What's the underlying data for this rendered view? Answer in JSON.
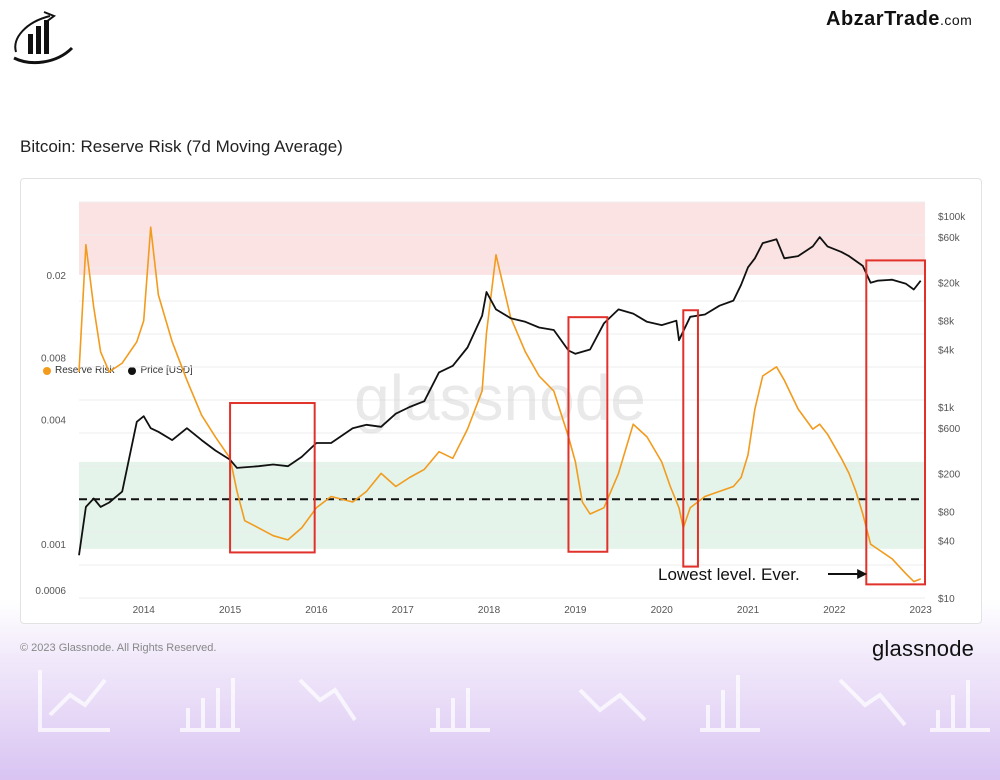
{
  "brand": {
    "name": "AbzarTrade",
    "tld": ".com"
  },
  "chart_title": "Bitcoin: Reserve Risk (7d Moving Average)",
  "copyright": "© 2023 Glassnode. All Rights Reserved.",
  "glassnode_logo": "glassnode",
  "watermark": "glassnode",
  "colors": {
    "reserve_risk": "#f29b1d",
    "price": "#111111",
    "red_zone": "#fbe3e3",
    "green_zone": "#e4f4ea",
    "box": "#e0322a"
  },
  "chart_data": {
    "type": "line",
    "title": "Bitcoin: Reserve Risk (7d Moving Average)",
    "legend": {
      "position": "top-left",
      "entries": [
        "Reserve Risk",
        "Price [USD]"
      ]
    },
    "x_range": [
      2013.25,
      2023.05
    ],
    "x_ticks": [
      "2014",
      "2015",
      "2016",
      "2017",
      "2018",
      "2019",
      "2020",
      "2021",
      "2022",
      "2023"
    ],
    "y_left": {
      "scale": "log",
      "range": [
        0.00055,
        0.045
      ],
      "ticks": [
        {
          "label": "0.02",
          "value": 0.02
        },
        {
          "label": "0.008",
          "value": 0.008
        },
        {
          "label": "0.004",
          "value": 0.004
        },
        {
          "label": "0.001",
          "value": 0.001
        },
        {
          "label": "0.0006",
          "value": 0.0006
        }
      ]
    },
    "y_right": {
      "scale": "log",
      "range": [
        10,
        140000
      ],
      "ticks": [
        {
          "label": "$100k",
          "value": 100000
        },
        {
          "label": "$60k",
          "value": 60000
        },
        {
          "label": "$20k",
          "value": 20000
        },
        {
          "label": "$8k",
          "value": 8000
        },
        {
          "label": "$4k",
          "value": 4000
        },
        {
          "label": "$1k",
          "value": 1000
        },
        {
          "label": "$600",
          "value": 600
        },
        {
          "label": "$200",
          "value": 200
        },
        {
          "label": "$80",
          "value": 80
        },
        {
          "label": "$40",
          "value": 40
        },
        {
          "label": "$10",
          "value": 10
        }
      ]
    },
    "zones": [
      {
        "name": "high-risk",
        "from": 0.02,
        "to": 0.045,
        "color": "#fbe3e3"
      },
      {
        "name": "low-risk",
        "from": 0.00095,
        "to": 0.0025,
        "color": "#e4f4ea"
      }
    ],
    "reference_line": {
      "style": "dashed",
      "value": 0.00165
    },
    "series": [
      {
        "name": "Reserve Risk",
        "axis": "left",
        "color": "#f29b1d",
        "x": [
          2013.25,
          2013.33,
          2013.42,
          2013.5,
          2013.6,
          2013.75,
          2013.92,
          2014.0,
          2014.08,
          2014.17,
          2014.33,
          2014.5,
          2014.67,
          2014.83,
          2015.0,
          2015.08,
          2015.17,
          2015.33,
          2015.5,
          2015.67,
          2015.83,
          2016.0,
          2016.17,
          2016.42,
          2016.58,
          2016.75,
          2016.92,
          2017.08,
          2017.25,
          2017.42,
          2017.58,
          2017.75,
          2017.92,
          2017.97,
          2018.08,
          2018.25,
          2018.42,
          2018.58,
          2018.75,
          2018.92,
          2019.0,
          2019.08,
          2019.17,
          2019.33,
          2019.5,
          2019.67,
          2019.83,
          2020.0,
          2020.1,
          2020.2,
          2020.25,
          2020.33,
          2020.5,
          2020.67,
          2020.83,
          2020.92,
          2021.0,
          2021.08,
          2021.17,
          2021.33,
          2021.42,
          2021.58,
          2021.75,
          2021.83,
          2021.92,
          2022.08,
          2022.17,
          2022.25,
          2022.33,
          2022.42,
          2022.5,
          2022.67,
          2022.83,
          2022.92,
          2023.0
        ],
        "y": [
          0.0068,
          0.028,
          0.014,
          0.0085,
          0.0068,
          0.0075,
          0.0095,
          0.012,
          0.034,
          0.016,
          0.0095,
          0.0062,
          0.0042,
          0.0033,
          0.0026,
          0.0018,
          0.0013,
          0.0012,
          0.0011,
          0.00105,
          0.0012,
          0.0015,
          0.0017,
          0.0016,
          0.0018,
          0.0022,
          0.0019,
          0.0021,
          0.0023,
          0.0028,
          0.0026,
          0.0036,
          0.0055,
          0.0105,
          0.025,
          0.0125,
          0.0085,
          0.0065,
          0.0055,
          0.0033,
          0.0025,
          0.0016,
          0.0014,
          0.0015,
          0.0022,
          0.0038,
          0.0033,
          0.0025,
          0.0019,
          0.0015,
          0.0012,
          0.0015,
          0.0017,
          0.0018,
          0.0019,
          0.0021,
          0.0027,
          0.0045,
          0.0065,
          0.0072,
          0.0062,
          0.0045,
          0.0036,
          0.0038,
          0.0034,
          0.0026,
          0.0022,
          0.0018,
          0.0014,
          0.001,
          0.00095,
          0.00085,
          0.00072,
          0.00066,
          0.00068
        ]
      },
      {
        "name": "Price [USD]",
        "axis": "right",
        "color": "#111111",
        "x": [
          2013.25,
          2013.33,
          2013.42,
          2013.5,
          2013.6,
          2013.75,
          2013.92,
          2014.0,
          2014.08,
          2014.17,
          2014.33,
          2014.5,
          2014.67,
          2014.83,
          2015.0,
          2015.08,
          2015.33,
          2015.5,
          2015.67,
          2015.83,
          2016.0,
          2016.17,
          2016.42,
          2016.58,
          2016.75,
          2016.92,
          2017.08,
          2017.25,
          2017.42,
          2017.58,
          2017.75,
          2017.92,
          2017.97,
          2018.08,
          2018.25,
          2018.42,
          2018.58,
          2018.75,
          2018.92,
          2019.0,
          2019.17,
          2019.33,
          2019.5,
          2019.67,
          2019.83,
          2020.0,
          2020.17,
          2020.2,
          2020.33,
          2020.5,
          2020.67,
          2020.83,
          2020.92,
          2021.0,
          2021.08,
          2021.17,
          2021.33,
          2021.42,
          2021.58,
          2021.75,
          2021.83,
          2021.92,
          2022.08,
          2022.17,
          2022.33,
          2022.42,
          2022.5,
          2022.67,
          2022.83,
          2022.92,
          2023.0
        ],
        "y": [
          28,
          90,
          110,
          90,
          100,
          130,
          700,
          800,
          600,
          550,
          450,
          600,
          450,
          350,
          280,
          230,
          240,
          250,
          240,
          300,
          420,
          420,
          600,
          650,
          620,
          850,
          1000,
          1150,
          2300,
          2700,
          4200,
          9000,
          16000,
          10500,
          8500,
          7800,
          6800,
          6400,
          3900,
          3600,
          4000,
          7500,
          10500,
          9500,
          7800,
          7200,
          8000,
          5000,
          8800,
          9300,
          11500,
          13000,
          19000,
          29000,
          36000,
          52000,
          57000,
          36000,
          38000,
          48000,
          60000,
          48000,
          42000,
          38000,
          30000,
          20000,
          21000,
          21500,
          19500,
          17000,
          21000
        ]
      }
    ],
    "annotations": [
      {
        "type": "box",
        "x": [
          2015.0,
          2015.98
        ],
        "y_right": [
          30,
          1100
        ]
      },
      {
        "type": "box",
        "x": [
          2018.92,
          2019.37
        ],
        "y_left": [
          0.00092,
          0.0125
        ]
      },
      {
        "type": "box",
        "x": [
          2020.25,
          2020.42
        ],
        "y_left": [
          0.00078,
          0.0135
        ]
      },
      {
        "type": "box",
        "x": [
          2022.37,
          2023.05
        ],
        "y_left": [
          0.00064,
          0.0235
        ]
      },
      {
        "type": "text",
        "text": "Lowest level. Ever.",
        "arrow_to": 2022.38
      }
    ]
  }
}
